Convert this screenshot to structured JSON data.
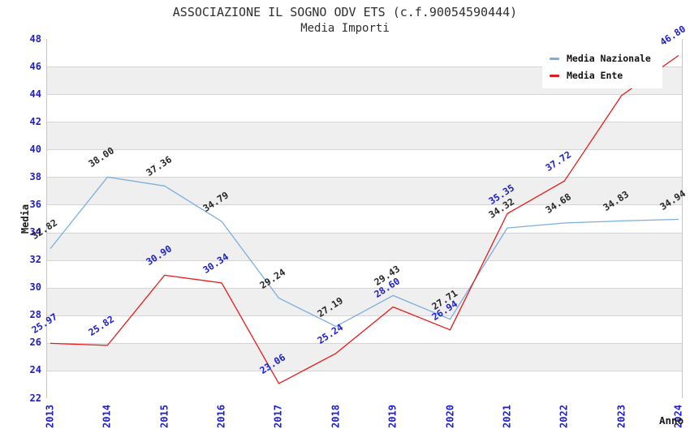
{
  "title": "ASSOCIAZIONE IL SOGNO ODV ETS (c.f.90054590444)",
  "subtitle": "Media Importi",
  "chart_data": {
    "type": "line",
    "x_categories": [
      "2013",
      "2014",
      "2015",
      "2016",
      "2017",
      "2018",
      "2019",
      "2020",
      "2021",
      "2022",
      "2023",
      "2024"
    ],
    "xlabel": "Anno",
    "ylabel": "Media",
    "ylim": [
      22,
      48
    ],
    "ytick_step": 2,
    "grid": true,
    "legend_position": "top-right",
    "series": [
      {
        "name": "Media Nazionale",
        "line_color": "#7aaede",
        "label_color": "#262626",
        "values": [
          32.82,
          38.0,
          37.36,
          34.79,
          29.24,
          27.19,
          29.43,
          27.71,
          34.32,
          34.68,
          34.83,
          34.94
        ],
        "point_labels": [
          "32.82",
          "38.00",
          "37.36",
          "34.79",
          "29.24",
          "27.19",
          "29.43",
          "27.71",
          "34.32",
          "34.68",
          "34.83",
          "34.94"
        ]
      },
      {
        "name": "Media Ente",
        "line_color": "#e8191a",
        "label_color": "#1c1ccd",
        "values": [
          25.97,
          25.82,
          30.9,
          30.34,
          23.06,
          25.24,
          28.6,
          26.94,
          35.35,
          37.72,
          43.9,
          46.8
        ],
        "point_labels": [
          "25.97",
          "25.82",
          "30.90",
          "30.34",
          "23.06",
          "25.24",
          "28.60",
          "26.94",
          "35.35",
          "37.72",
          "43.9",
          "46.80"
        ]
      }
    ]
  },
  "colors": {
    "axis_tick": "#1c1ccd",
    "band_gray": "#efefef",
    "gridline": "#d4d4d4",
    "plot_border": "#c6c6c6",
    "title_text": "#2e2e2e"
  }
}
